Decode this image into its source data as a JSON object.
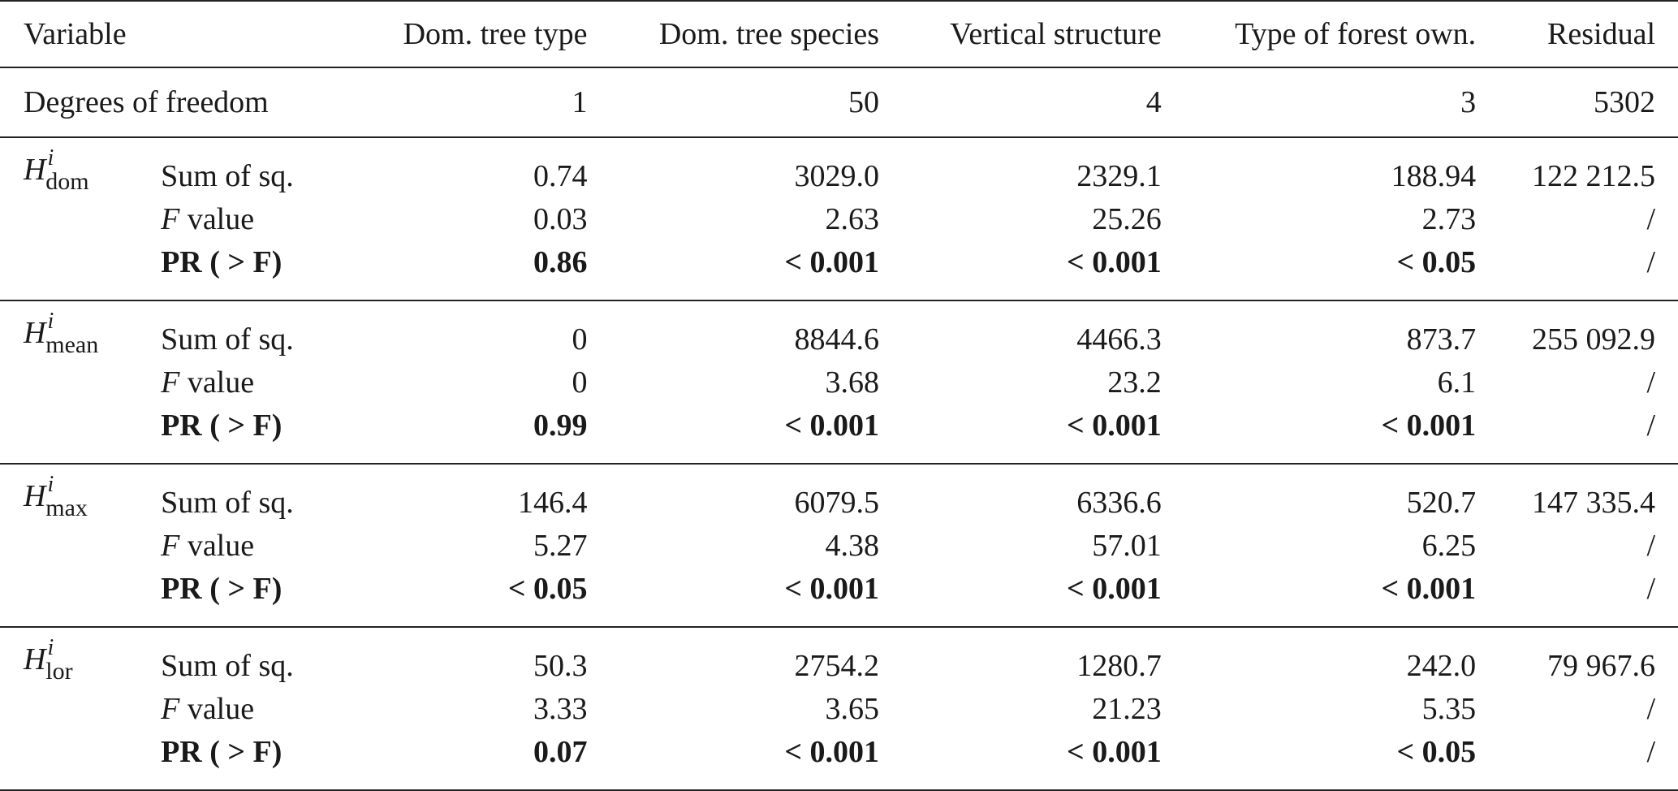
{
  "header": {
    "variable": "Variable",
    "columns": [
      "Dom. tree type",
      "Dom. tree species",
      "Vertical structure",
      "Type of forest own.",
      "Residual"
    ]
  },
  "dof": {
    "label": "Degrees of freedom",
    "values": [
      "1",
      "50",
      "4",
      "3",
      "5302"
    ]
  },
  "groups": [
    {
      "symbol": "H",
      "sup": "i",
      "sub": "dom",
      "rows": [
        {
          "label_pre": "",
          "label": "Sum of sq.",
          "values": [
            "0.74",
            "3029.0",
            "2329.1",
            "188.94",
            "122 212.5"
          ]
        },
        {
          "label_pre": "F",
          "label": " value",
          "values": [
            "0.03",
            "2.63",
            "25.26",
            "2.73",
            "/"
          ]
        },
        {
          "label_pre": "",
          "label": "PR ( > F)",
          "values": [
            "0.86",
            "< 0.001",
            "< 0.001",
            "< 0.05",
            "/"
          ]
        }
      ]
    },
    {
      "symbol": "H",
      "sup": "i",
      "sub": "mean",
      "rows": [
        {
          "label_pre": "",
          "label": "Sum of sq.",
          "values": [
            "0",
            "8844.6",
            "4466.3",
            "873.7",
            "255 092.9"
          ]
        },
        {
          "label_pre": "F",
          "label": " value",
          "values": [
            "0",
            "3.68",
            "23.2",
            "6.1",
            "/"
          ]
        },
        {
          "label_pre": "",
          "label": "PR ( > F)",
          "values": [
            "0.99",
            "< 0.001",
            "< 0.001",
            "< 0.001",
            "/"
          ]
        }
      ]
    },
    {
      "symbol": "H",
      "sup": "i",
      "sub": "max",
      "rows": [
        {
          "label_pre": "",
          "label": "Sum of sq.",
          "values": [
            "146.4",
            "6079.5",
            "6336.6",
            "520.7",
            "147 335.4"
          ]
        },
        {
          "label_pre": "F",
          "label": " value",
          "values": [
            "5.27",
            "4.38",
            "57.01",
            "6.25",
            "/"
          ]
        },
        {
          "label_pre": "",
          "label": "PR ( > F)",
          "values": [
            "< 0.05",
            "< 0.001",
            "< 0.001",
            "< 0.001",
            "/"
          ]
        }
      ]
    },
    {
      "symbol": "H",
      "sup": "i",
      "sub": "lor",
      "rows": [
        {
          "label_pre": "",
          "label": "Sum of sq.",
          "values": [
            "50.3",
            "2754.2",
            "1280.7",
            "242.0",
            "79 967.6"
          ]
        },
        {
          "label_pre": "F",
          "label": " value",
          "values": [
            "3.33",
            "3.65",
            "21.23",
            "5.35",
            "/"
          ]
        },
        {
          "label_pre": "",
          "label": "PR ( > F)",
          "values": [
            "0.07",
            "< 0.001",
            "< 0.001",
            "< 0.05",
            "/"
          ]
        }
      ]
    }
  ]
}
